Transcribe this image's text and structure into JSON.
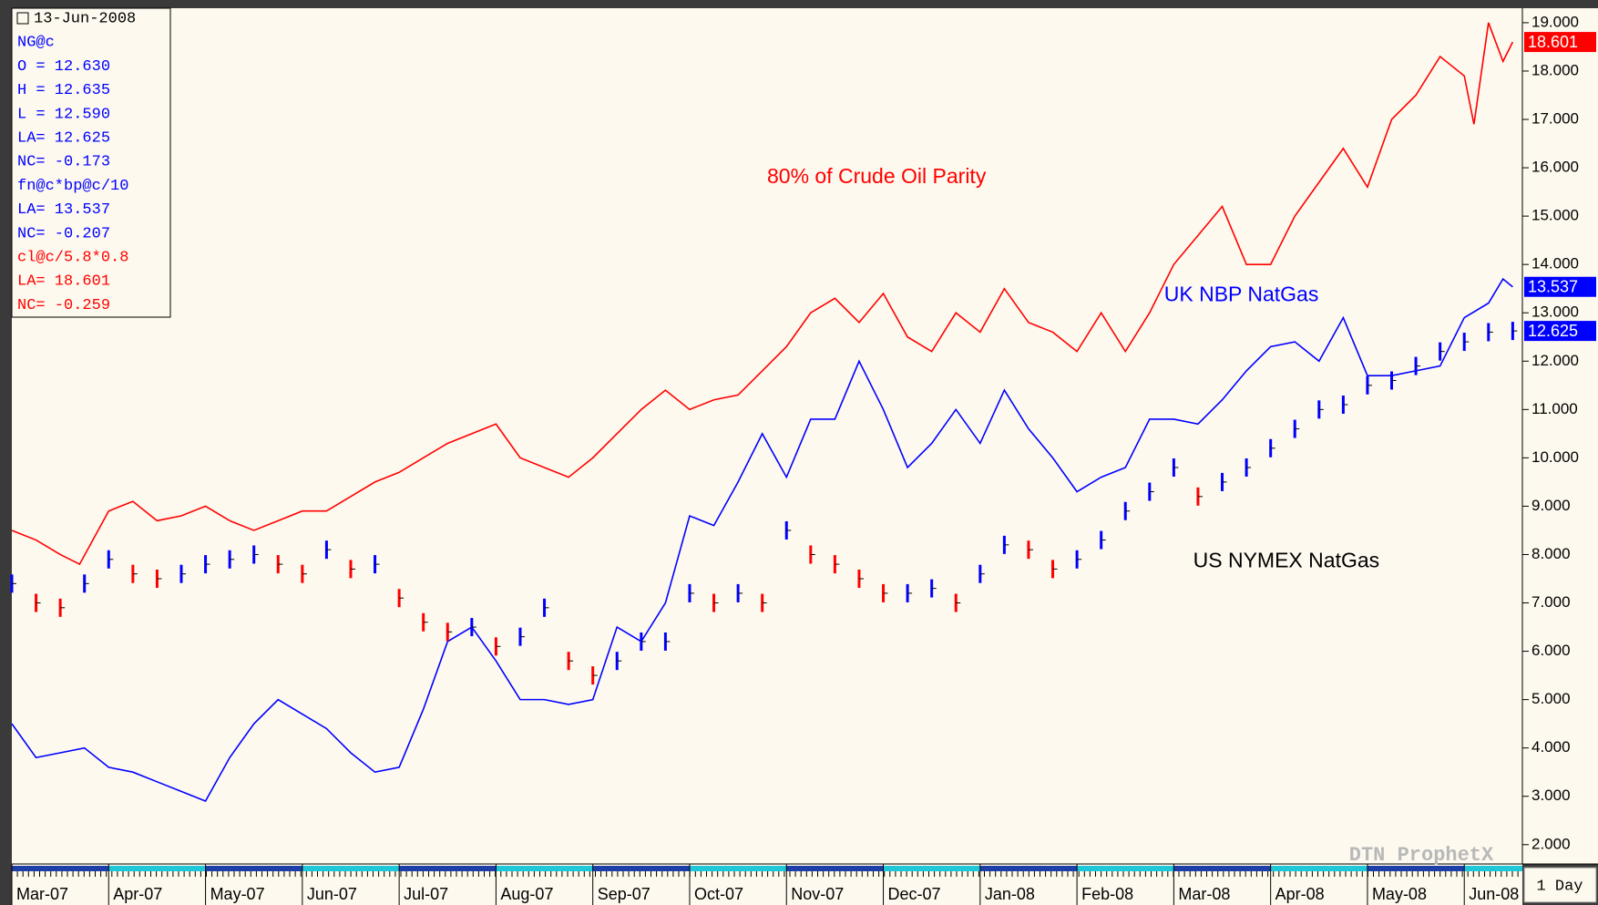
{
  "chart_data": {
    "type": "line",
    "info_box": [
      {
        "text": "13-Jun-2008",
        "color": "#000000"
      },
      {
        "text": "NG@c",
        "color": "#0000ff"
      },
      {
        "text": "O = 12.630",
        "color": "#0000ff"
      },
      {
        "text": "H = 12.635",
        "color": "#0000ff"
      },
      {
        "text": "L = 12.590",
        "color": "#0000ff"
      },
      {
        "text": "LA= 12.625",
        "color": "#0000ff"
      },
      {
        "text": "NC= -0.173",
        "color": "#0000ff"
      },
      {
        "text": "fn@c*bp@c/10",
        "color": "#0000ff"
      },
      {
        "text": "LA= 13.537",
        "color": "#0000ff"
      },
      {
        "text": "NC= -0.207",
        "color": "#0000ff"
      },
      {
        "text": "cl@c/5.8*0.8",
        "color": "#ff0000"
      },
      {
        "text": "LA= 18.601",
        "color": "#ff0000"
      },
      {
        "text": "NC= -0.259",
        "color": "#ff0000"
      }
    ],
    "watermark": "DTN ProphetX",
    "period_button": "1 Day",
    "xlim": [
      0,
      15.6
    ],
    "xticks": [
      {
        "value": 0,
        "label": "Mar-07"
      },
      {
        "value": 1,
        "label": "Apr-07"
      },
      {
        "value": 2,
        "label": "May-07"
      },
      {
        "value": 3,
        "label": "Jun-07"
      },
      {
        "value": 4,
        "label": "Jul-07"
      },
      {
        "value": 5,
        "label": "Aug-07"
      },
      {
        "value": 6,
        "label": "Sep-07"
      },
      {
        "value": 7,
        "label": "Oct-07"
      },
      {
        "value": 8,
        "label": "Nov-07"
      },
      {
        "value": 9,
        "label": "Dec-07"
      },
      {
        "value": 10,
        "label": "Jan-08"
      },
      {
        "value": 11,
        "label": "Feb-08"
      },
      {
        "value": 12,
        "label": "Mar-08"
      },
      {
        "value": 13,
        "label": "Apr-08"
      },
      {
        "value": 14,
        "label": "May-08"
      },
      {
        "value": 15,
        "label": "Jun-08"
      }
    ],
    "ylim": [
      1.6,
      19.3
    ],
    "yticks": [
      {
        "value": 2,
        "label": "2.000"
      },
      {
        "value": 3,
        "label": "3.000"
      },
      {
        "value": 4,
        "label": "4.000"
      },
      {
        "value": 5,
        "label": "5.000"
      },
      {
        "value": 6,
        "label": "6.000"
      },
      {
        "value": 7,
        "label": "7.000"
      },
      {
        "value": 8,
        "label": "8.000"
      },
      {
        "value": 9,
        "label": "9.000"
      },
      {
        "value": 10,
        "label": "10.000"
      },
      {
        "value": 11,
        "label": "11.000"
      },
      {
        "value": 12,
        "label": "12.000"
      },
      {
        "value": 13,
        "label": "13.000"
      },
      {
        "value": 14,
        "label": "14.000"
      },
      {
        "value": 15,
        "label": "15.000"
      },
      {
        "value": 16,
        "label": "16.000"
      },
      {
        "value": 17,
        "label": "17.000"
      },
      {
        "value": 18,
        "label": "18.000"
      },
      {
        "value": 19,
        "label": "19.000"
      }
    ],
    "series": [
      {
        "name": "80% of Crude Oil Parity",
        "color": "#ff0000",
        "style": "line",
        "x": [
          0,
          0.25,
          0.5,
          0.7,
          1,
          1.25,
          1.5,
          1.75,
          2,
          2.25,
          2.5,
          2.75,
          3,
          3.25,
          3.5,
          3.75,
          4,
          4.25,
          4.5,
          4.75,
          5,
          5.25,
          5.5,
          5.75,
          6,
          6.25,
          6.5,
          6.75,
          7,
          7.25,
          7.5,
          7.75,
          8,
          8.25,
          8.5,
          8.75,
          9,
          9.25,
          9.5,
          9.75,
          10,
          10.25,
          10.5,
          10.75,
          11,
          11.25,
          11.5,
          11.75,
          12,
          12.25,
          12.5,
          12.75,
          13,
          13.25,
          13.5,
          13.75,
          14,
          14.25,
          14.5,
          14.75,
          15,
          15.1,
          15.25,
          15.4,
          15.5
        ],
        "values": [
          8.5,
          8.3,
          8.0,
          7.8,
          8.9,
          9.1,
          8.7,
          8.8,
          9.0,
          8.7,
          8.5,
          8.7,
          8.9,
          8.9,
          9.2,
          9.5,
          9.7,
          10.0,
          10.3,
          10.5,
          10.7,
          10.0,
          9.8,
          9.6,
          10.0,
          10.5,
          11.0,
          11.4,
          11.0,
          11.2,
          11.3,
          11.8,
          12.3,
          13.0,
          13.3,
          12.8,
          13.4,
          12.5,
          12.2,
          13.0,
          12.6,
          13.5,
          12.8,
          12.6,
          12.2,
          13.0,
          12.2,
          13.0,
          14.0,
          14.6,
          15.2,
          14.0,
          14.0,
          15.0,
          15.7,
          16.4,
          15.6,
          17.0,
          17.5,
          18.3,
          17.9,
          16.9,
          19.0,
          18.2,
          18.601
        ]
      },
      {
        "name": "UK NBP NatGas",
        "color": "#0000ff",
        "style": "line",
        "x": [
          0,
          0.25,
          0.5,
          0.75,
          1,
          1.25,
          1.5,
          1.75,
          2,
          2.25,
          2.5,
          2.75,
          3,
          3.25,
          3.5,
          3.75,
          4,
          4.25,
          4.5,
          4.75,
          5,
          5.25,
          5.5,
          5.75,
          6,
          6.25,
          6.5,
          6.75,
          7,
          7.25,
          7.5,
          7.75,
          8,
          8.25,
          8.5,
          8.75,
          9,
          9.25,
          9.5,
          9.75,
          10,
          10.25,
          10.5,
          10.75,
          11,
          11.25,
          11.5,
          11.75,
          12,
          12.25,
          12.5,
          12.75,
          13,
          13.25,
          13.5,
          13.75,
          14,
          14.25,
          14.5,
          14.75,
          15,
          15.25,
          15.4,
          15.5
        ],
        "values": [
          4.5,
          3.8,
          3.9,
          4.0,
          3.6,
          3.5,
          3.3,
          3.1,
          2.9,
          3.8,
          4.5,
          5.0,
          4.7,
          4.4,
          3.9,
          3.5,
          3.6,
          4.8,
          6.2,
          6.5,
          5.8,
          5.0,
          5.0,
          4.9,
          5.0,
          6.5,
          6.2,
          7.0,
          8.8,
          8.6,
          9.5,
          10.5,
          9.6,
          10.8,
          10.8,
          12.0,
          11.0,
          9.8,
          10.3,
          11.0,
          10.3,
          11.4,
          10.6,
          10.0,
          9.3,
          9.6,
          9.8,
          10.8,
          10.8,
          10.7,
          11.2,
          11.8,
          12.3,
          12.4,
          12.0,
          12.9,
          11.7,
          11.7,
          11.8,
          11.9,
          12.9,
          13.2,
          13.7,
          13.537
        ]
      },
      {
        "name": "US NYMEX NatGas",
        "color": "#0000ff",
        "down_color": "#ff0000",
        "style": "bars",
        "x": [
          0,
          0.25,
          0.5,
          0.75,
          1,
          1.25,
          1.5,
          1.75,
          2,
          2.25,
          2.5,
          2.75,
          3,
          3.25,
          3.5,
          3.75,
          4,
          4.25,
          4.5,
          4.75,
          5,
          5.25,
          5.5,
          5.75,
          6,
          6.25,
          6.5,
          6.75,
          7,
          7.25,
          7.5,
          7.75,
          8,
          8.25,
          8.5,
          8.75,
          9,
          9.25,
          9.5,
          9.75,
          10,
          10.25,
          10.5,
          10.75,
          11,
          11.25,
          11.5,
          11.75,
          12,
          12.25,
          12.5,
          12.75,
          13,
          13.25,
          13.5,
          13.75,
          14,
          14.25,
          14.5,
          14.75,
          15,
          15.25,
          15.5
        ],
        "values": [
          7.4,
          7.0,
          6.9,
          7.4,
          7.9,
          7.6,
          7.5,
          7.6,
          7.8,
          7.9,
          8.0,
          7.8,
          7.6,
          8.1,
          7.7,
          7.8,
          7.1,
          6.6,
          6.4,
          6.5,
          6.1,
          6.3,
          6.9,
          5.8,
          5.5,
          5.8,
          6.2,
          6.2,
          7.2,
          7.0,
          7.2,
          7.0,
          8.5,
          8.0,
          7.8,
          7.5,
          7.2,
          7.2,
          7.3,
          7.0,
          7.6,
          8.2,
          8.1,
          7.7,
          7.9,
          8.3,
          8.9,
          9.3,
          9.8,
          9.2,
          9.5,
          9.8,
          10.2,
          10.6,
          11.0,
          11.1,
          11.5,
          11.6,
          11.9,
          12.2,
          12.4,
          12.6,
          12.625
        ]
      }
    ],
    "annotations": [
      {
        "text": "80% of Crude Oil Parity",
        "x": 7.8,
        "y": 15.8,
        "color": "#ff0000"
      },
      {
        "text": "UK NBP NatGas",
        "x": 11.9,
        "y": 13.35,
        "color": "#0000ff"
      },
      {
        "text": "US NYMEX NatGas",
        "x": 12.2,
        "y": 7.85,
        "color": "#000000"
      }
    ]
  }
}
